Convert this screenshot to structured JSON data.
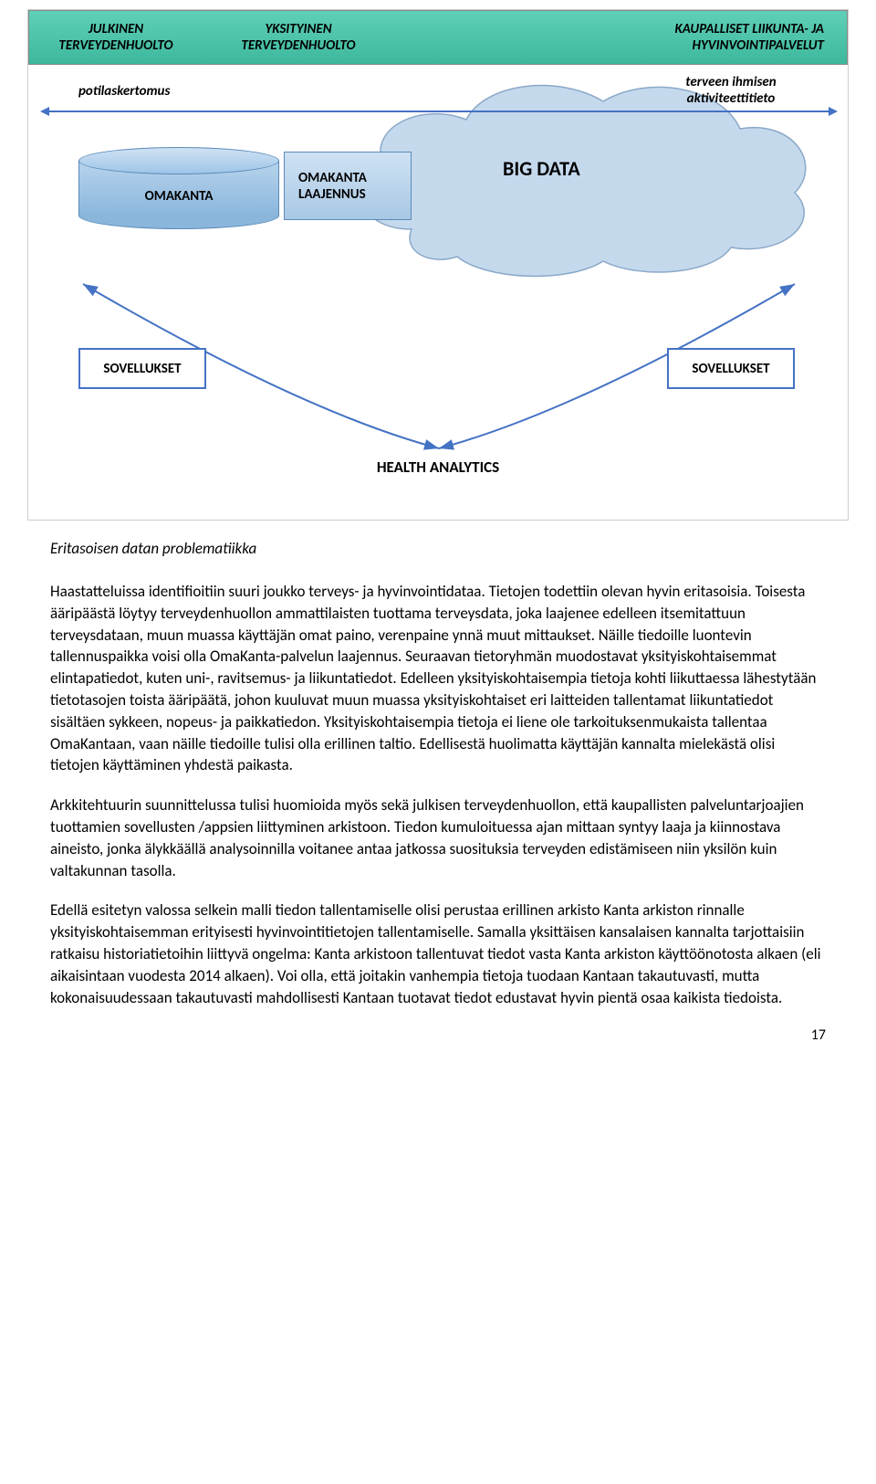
{
  "diagram": {
    "header": {
      "col1": "JULKINEN\nTERVEYDENHUOLTO",
      "col2": "YKSITYINEN\nTERVEYDENHUOLTO",
      "col3": "KAUPALLISET LIIKUNTA- JA\nHYVINVOINTIPALVELUT",
      "bg_gradient": [
        "#5fd0b8",
        "#3db89c"
      ]
    },
    "labels": {
      "potilaskertomus": "potilaskertomus",
      "aktiviteetti": "terveen ihmisen\naktiviteettitieto",
      "omakanta": "OMAKANTA",
      "omakanta_ext": "OMAKANTA\nLAAJENNUS",
      "bigdata": "BIG DATA",
      "sovellukset": "SOVELLUKSET",
      "health_analytics": "HEALTH ANALYTICS"
    },
    "colors": {
      "cloud_fill": "#c5d9ed",
      "cloud_stroke": "#8aa8c8",
      "box_fill_top": "#cfe2f3",
      "box_fill_bottom": "#a8c8e4",
      "box_border": "#5b8ab8",
      "arrow": "#4472c4",
      "sov_border": "#4472c4"
    }
  },
  "caption": "Eritasoisen datan problematiikka",
  "paragraphs": {
    "p1": "Haastatteluissa identifioitiin suuri joukko terveys- ja hyvinvointidataa. Tietojen todettiin olevan hyvin eritasoisia. Toisesta ääripäästä löytyy terveydenhuollon ammattilaisten tuottama terveysdata, joka laajenee edelleen itsemitattuun terveysdataan, muun muassa käyttäjän omat paino, verenpaine ynnä muut mittaukset. Näille tiedoille luontevin tallennuspaikka voisi olla OmaKanta-palvelun laajennus. Seuraavan tietoryhmän muodostavat yksityiskohtaisemmat elintapatiedot, kuten uni-, ravitsemus- ja liikuntatiedot. Edelleen yksityiskohtaisempia tietoja kohti liikuttaessa lähestytään tietotasojen toista ääripäätä, johon kuuluvat muun muassa yksityiskohtaiset eri laitteiden tallentamat liikuntatiedot sisältäen sykkeen, nopeus- ja paikkatiedon. Yksityiskohtaisempia tietoja ei liene ole tarkoituksenmukaista tallentaa OmaKantaan, vaan näille tiedoille tulisi olla erillinen taltio. Edellisestä huolimatta käyttäjän kannalta mielekästä olisi tietojen käyttäminen yhdestä paikasta.",
    "p2": "Arkkitehtuurin suunnittelussa tulisi huomioida myös sekä julkisen terveydenhuollon, että kaupallisten palveluntarjoajien tuottamien sovellusten /appsien liittyminen arkistoon. Tiedon kumuloituessa ajan mittaan syntyy laaja ja kiinnostava aineisto, jonka älykkäällä analysoinnilla voitanee antaa jatkossa suosituksia terveyden edistämiseen niin yksilön kuin valtakunnan tasolla.",
    "p3": "Edellä esitetyn valossa selkein malli tiedon tallentamiselle olisi perustaa erillinen arkisto Kanta arkiston rinnalle yksityiskohtaisemman erityisesti hyvinvointitietojen tallentamiselle. Samalla yksittäisen kansalaisen kannalta tarjottaisiin ratkaisu historiatietoihin liittyvä ongelma: Kanta arkistoon tallentuvat tiedot vasta Kanta arkiston käyttöönotosta alkaen (eli aikaisintaan vuodesta 2014 alkaen). Voi olla, että joitakin vanhempia tietoja tuodaan Kantaan takautuvasti, mutta kokonaisuudessaan takautuvasti mahdollisesti Kantaan tuotavat tiedot edustavat hyvin pientä osaa kaikista tiedoista."
  },
  "page_number": "17"
}
